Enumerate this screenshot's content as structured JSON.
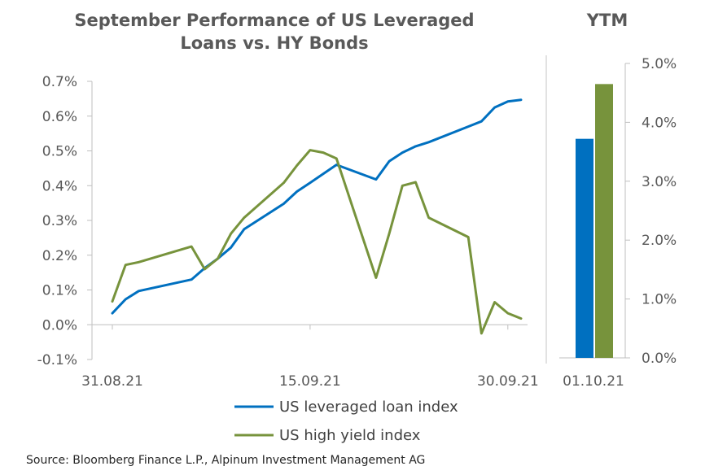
{
  "chart_data": [
    {
      "type": "line",
      "title": "September Performance of US Leveraged Loans vs. HY Bonds",
      "title_lines": [
        "September Performance of US Leveraged",
        "Loans vs. HY Bonds"
      ],
      "xlabel": "",
      "ylabel": "",
      "x_tick_labels": [
        "31.08.21",
        "15.09.21",
        "30.09.21"
      ],
      "y_tick_labels": [
        "-0.1%",
        "0.0%",
        "0.1%",
        "0.2%",
        "0.3%",
        "0.4%",
        "0.5%",
        "0.6%",
        "0.7%"
      ],
      "ylim": [
        -0.1,
        0.7
      ],
      "grid": false,
      "legend_position": "bottom",
      "series": [
        {
          "name": "US leveraged loan index",
          "color": "#0070C0",
          "points": [
            [
              "2021-08-31",
              0.033
            ],
            [
              "2021-09-01",
              0.073
            ],
            [
              "2021-09-02",
              0.097
            ],
            [
              "2021-09-06",
              0.13
            ],
            [
              "2021-09-07",
              0.163
            ],
            [
              "2021-09-08",
              0.19
            ],
            [
              "2021-09-09",
              0.222
            ],
            [
              "2021-09-10",
              0.275
            ],
            [
              "2021-09-13",
              0.348
            ],
            [
              "2021-09-14",
              0.383
            ],
            [
              "2021-09-15",
              0.408
            ],
            [
              "2021-09-17",
              0.46
            ],
            [
              "2021-09-20",
              0.418
            ],
            [
              "2021-09-21",
              0.47
            ],
            [
              "2021-09-22",
              0.495
            ],
            [
              "2021-09-23",
              0.513
            ],
            [
              "2021-09-24",
              0.525
            ],
            [
              "2021-09-27",
              0.57
            ],
            [
              "2021-09-28",
              0.585
            ],
            [
              "2021-09-29",
              0.625
            ],
            [
              "2021-09-30",
              0.642
            ],
            [
              "2021-10-01",
              0.647
            ]
          ]
        },
        {
          "name": "US high yield index",
          "color": "#77933C",
          "points": [
            [
              "2021-08-31",
              0.067
            ],
            [
              "2021-09-01",
              0.172
            ],
            [
              "2021-09-02",
              0.18
            ],
            [
              "2021-09-06",
              0.225
            ],
            [
              "2021-09-07",
              0.16
            ],
            [
              "2021-09-08",
              0.19
            ],
            [
              "2021-09-09",
              0.262
            ],
            [
              "2021-09-10",
              0.308
            ],
            [
              "2021-09-13",
              0.408
            ],
            [
              "2021-09-14",
              0.458
            ],
            [
              "2021-09-15",
              0.502
            ],
            [
              "2021-09-16",
              0.495
            ],
            [
              "2021-09-17",
              0.478
            ],
            [
              "2021-09-20",
              0.135
            ],
            [
              "2021-09-21",
              0.262
            ],
            [
              "2021-09-22",
              0.4
            ],
            [
              "2021-09-23",
              0.41
            ],
            [
              "2021-09-24",
              0.308
            ],
            [
              "2021-09-27",
              0.252
            ],
            [
              "2021-09-28",
              -0.025
            ],
            [
              "2021-09-29",
              0.065
            ],
            [
              "2021-09-30",
              0.033
            ],
            [
              "2021-10-01",
              0.018
            ]
          ]
        }
      ]
    },
    {
      "type": "bar",
      "title": "YTM",
      "categories": [
        "01.10.21"
      ],
      "y_tick_labels": [
        "0.0%",
        "1.0%",
        "2.0%",
        "3.0%",
        "4.0%",
        "5.0%"
      ],
      "ylim": [
        0,
        5
      ],
      "grid": false,
      "series": [
        {
          "name": "US leveraged loan index",
          "color": "#0070C0",
          "values": [
            3.72
          ]
        },
        {
          "name": "US high yield index",
          "color": "#77933C",
          "values": [
            4.65
          ]
        }
      ]
    }
  ],
  "legend": [
    {
      "label": "US leveraged loan index",
      "color": "#0070C0"
    },
    {
      "label": "US high yield index",
      "color": "#77933C"
    }
  ],
  "source": "Source: Bloomberg Finance L.P., Alpinum Investment Management AG"
}
